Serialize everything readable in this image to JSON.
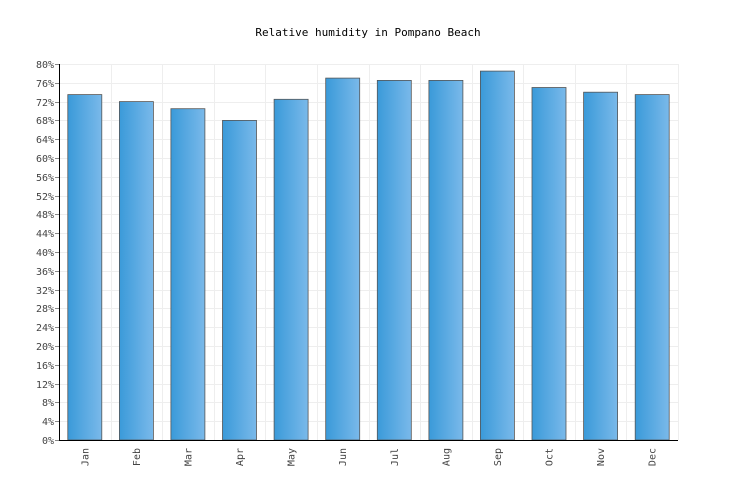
{
  "chart_data": {
    "type": "bar",
    "title": "Relative humidity in Pompano Beach",
    "xlabel": "",
    "ylabel": "",
    "categories": [
      "Jan",
      "Feb",
      "Mar",
      "Apr",
      "May",
      "Jun",
      "Jul",
      "Aug",
      "Sep",
      "Oct",
      "Nov",
      "Dec"
    ],
    "values": [
      73.5,
      72,
      70.5,
      68,
      72.5,
      77,
      76.5,
      76.5,
      78.5,
      75,
      74,
      73.5
    ],
    "ylim": [
      0,
      80
    ],
    "y_ticks": [
      0,
      4,
      8,
      12,
      16,
      20,
      24,
      28,
      32,
      36,
      40,
      44,
      48,
      52,
      56,
      60,
      64,
      68,
      72,
      76,
      80
    ],
    "y_tick_suffix": "%",
    "grid": true,
    "legend": "none",
    "colors": {
      "bar_dark": "#3a9ad9",
      "bar_light": "#7ab9ea",
      "bar_border": "#555555",
      "grid": "#eeeeee",
      "axis": "#000000"
    }
  }
}
